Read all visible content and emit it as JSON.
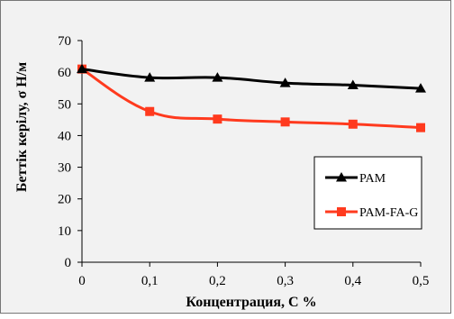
{
  "chart_data": {
    "type": "line",
    "title": "",
    "xlabel": "Концентрация, С %",
    "ylabel": "Беттік керілу, σ Н/м",
    "x": [
      "0",
      "0,1",
      "0,2",
      "0,3",
      "0,4",
      "0,5"
    ],
    "x_values": [
      0,
      0.1,
      0.2,
      0.3,
      0.4,
      0.5
    ],
    "y_ticks": [
      "0",
      "10",
      "20",
      "30",
      "40",
      "50",
      "60",
      "70"
    ],
    "ylim": [
      0,
      70
    ],
    "grid": false,
    "smooth": true,
    "legend_position": "right",
    "series": [
      {
        "name": "PAM",
        "color": "#000000",
        "marker": "triangle",
        "values": [
          61,
          58.3,
          58.3,
          56.6,
          55.9,
          54.9
        ]
      },
      {
        "name": "PAM-FA-G",
        "color": "#ff3a1e",
        "marker": "square",
        "values": [
          61,
          47.6,
          45.2,
          44.3,
          43.6,
          42.5
        ]
      }
    ]
  }
}
